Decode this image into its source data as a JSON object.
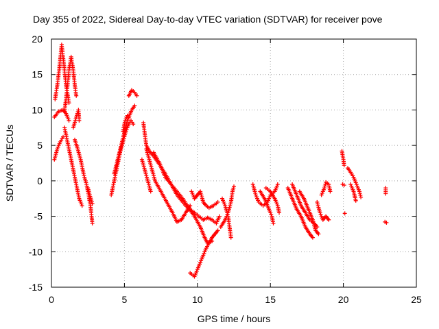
{
  "chart_data": {
    "type": "scatter",
    "title": "Day 355 of 2022, Sidereal Day-to-day VTEC variation (SDTVAR) for receiver pove",
    "xlabel": "GPS time / hours",
    "ylabel": "SDTVAR / TECUs",
    "xlim": [
      0,
      25
    ],
    "ylim": [
      -15,
      20
    ],
    "xticks": [
      0,
      5,
      10,
      15,
      20,
      25
    ],
    "yticks": [
      -15,
      -10,
      -5,
      0,
      5,
      10,
      15,
      20
    ],
    "grid": true,
    "marker": "+",
    "color": "#ff0000",
    "segments": [
      [
        [
          0.2,
          3.0
        ],
        [
          0.4,
          4.5
        ],
        [
          0.6,
          5.5
        ],
        [
          0.8,
          6.2
        ]
      ],
      [
        [
          0.25,
          11.5
        ],
        [
          0.4,
          13.5
        ],
        [
          0.55,
          16.0
        ],
        [
          0.7,
          19.2
        ],
        [
          0.85,
          16.5
        ],
        [
          1.0,
          13.5
        ],
        [
          1.2,
          11.0
        ]
      ],
      [
        [
          0.2,
          9.0
        ],
        [
          0.5,
          9.8
        ],
        [
          0.8,
          10.0
        ],
        [
          1.0,
          9.5
        ],
        [
          1.2,
          8.5
        ]
      ],
      [
        [
          0.9,
          9.8
        ],
        [
          1.05,
          12.5
        ],
        [
          1.2,
          15.5
        ],
        [
          1.35,
          17.5
        ],
        [
          1.5,
          15.5
        ],
        [
          1.6,
          13.5
        ],
        [
          1.7,
          12.0
        ]
      ],
      [
        [
          0.9,
          7.5
        ],
        [
          1.1,
          5.5
        ],
        [
          1.3,
          3.5
        ],
        [
          1.5,
          1.5
        ],
        [
          1.7,
          -0.5
        ],
        [
          1.9,
          -2.5
        ],
        [
          2.1,
          -3.5
        ]
      ],
      [
        [
          1.5,
          7.5
        ],
        [
          1.7,
          9.0
        ],
        [
          1.85,
          10.0
        ],
        [
          1.9,
          8.5
        ]
      ],
      [
        [
          1.6,
          5.8
        ],
        [
          1.8,
          4.5
        ],
        [
          2.0,
          3.0
        ],
        [
          2.2,
          1.0
        ],
        [
          2.4,
          -0.5
        ],
        [
          2.55,
          -2.0
        ],
        [
          2.7,
          -4.0
        ],
        [
          2.8,
          -6.0
        ]
      ],
      [
        [
          2.5,
          -1.0
        ],
        [
          2.65,
          -2.2
        ],
        [
          2.8,
          -3.2
        ]
      ],
      [
        [
          4.1,
          -2.0
        ],
        [
          4.3,
          0.0
        ],
        [
          4.5,
          2.0
        ],
        [
          4.7,
          4.0
        ],
        [
          4.9,
          5.5
        ],
        [
          5.1,
          7.0
        ],
        [
          5.3,
          8.0
        ],
        [
          5.45,
          8.5
        ],
        [
          5.6,
          8.0
        ]
      ],
      [
        [
          4.3,
          1.0
        ],
        [
          4.6,
          3.5
        ],
        [
          4.9,
          6.0
        ],
        [
          5.2,
          8.5
        ],
        [
          5.5,
          10.0
        ],
        [
          5.7,
          10.6
        ]
      ],
      [
        [
          5.3,
          12.0
        ],
        [
          5.5,
          12.8
        ],
        [
          5.7,
          12.5
        ],
        [
          5.85,
          12.0
        ]
      ],
      [
        [
          4.9,
          7.0
        ],
        [
          5.05,
          8.5
        ],
        [
          5.2,
          9.2
        ]
      ],
      [
        [
          6.3,
          8.2
        ],
        [
          6.4,
          6.5
        ],
        [
          6.5,
          5.0
        ],
        [
          6.7,
          4.2
        ],
        [
          7.0,
          3.5
        ],
        [
          7.4,
          2.3
        ],
        [
          7.8,
          1.0
        ],
        [
          8.2,
          -0.5
        ],
        [
          8.6,
          -2.0
        ],
        [
          9.0,
          -3.0
        ],
        [
          9.4,
          -4.0
        ],
        [
          9.7,
          -4.5
        ]
      ],
      [
        [
          6.2,
          3.0
        ],
        [
          6.4,
          1.5
        ],
        [
          6.6,
          0.0
        ],
        [
          6.8,
          -1.5
        ]
      ],
      [
        [
          6.5,
          4.5
        ],
        [
          6.7,
          3.0
        ],
        [
          6.9,
          1.5
        ],
        [
          7.1,
          0.0
        ],
        [
          7.5,
          -1.5
        ],
        [
          7.9,
          -3.0
        ],
        [
          8.3,
          -4.5
        ],
        [
          8.6,
          -5.8
        ],
        [
          8.9,
          -5.5
        ],
        [
          9.2,
          -4.5
        ],
        [
          9.5,
          -3.5
        ]
      ],
      [
        [
          7.0,
          4.0
        ],
        [
          7.4,
          2.5
        ],
        [
          7.8,
          0.5
        ],
        [
          8.2,
          -0.5
        ],
        [
          8.6,
          -1.5
        ],
        [
          9.0,
          -2.5
        ],
        [
          9.4,
          -3.8
        ],
        [
          9.8,
          -5.0
        ],
        [
          10.2,
          -6.5
        ],
        [
          10.5,
          -8.0
        ],
        [
          10.7,
          -8.8
        ],
        [
          11.0,
          -8.5
        ]
      ],
      [
        [
          9.6,
          -1.5
        ],
        [
          9.8,
          -2.5
        ],
        [
          10.0,
          -2.0
        ],
        [
          10.2,
          -1.5
        ],
        [
          10.4,
          -3.0
        ],
        [
          10.6,
          -3.5
        ],
        [
          10.8,
          -3.8
        ],
        [
          11.1,
          -3.5
        ],
        [
          11.4,
          -3.0
        ]
      ],
      [
        [
          9.5,
          -4.0
        ],
        [
          9.8,
          -4.5
        ],
        [
          10.1,
          -5.0
        ],
        [
          10.4,
          -5.5
        ],
        [
          10.7,
          -5.2
        ],
        [
          11.0,
          -5.5
        ],
        [
          11.3,
          -6.0
        ],
        [
          11.5,
          -5.0
        ]
      ],
      [
        [
          9.5,
          -13.0
        ],
        [
          9.8,
          -13.5
        ],
        [
          10.0,
          -12.5
        ],
        [
          10.2,
          -11.5
        ],
        [
          10.4,
          -10.5
        ],
        [
          10.6,
          -9.5
        ],
        [
          10.8,
          -8.8
        ],
        [
          11.0,
          -8.0
        ],
        [
          11.2,
          -7.5
        ],
        [
          11.4,
          -7.0
        ]
      ],
      [
        [
          11.6,
          -6.5
        ],
        [
          11.9,
          -5.5
        ],
        [
          12.1,
          -4.5
        ],
        [
          12.3,
          -3.0
        ],
        [
          12.4,
          -1.5
        ],
        [
          12.5,
          -0.8
        ]
      ],
      [
        [
          11.7,
          -2.5
        ],
        [
          11.9,
          -3.5
        ],
        [
          12.1,
          -5.0
        ],
        [
          12.2,
          -6.5
        ],
        [
          12.3,
          -8.0
        ]
      ],
      [
        [
          13.8,
          -0.5
        ],
        [
          14.0,
          -2.0
        ],
        [
          14.2,
          -3.0
        ],
        [
          14.5,
          -3.5
        ],
        [
          14.8,
          -3.0
        ],
        [
          15.0,
          -2.0
        ],
        [
          15.3,
          -1.5
        ],
        [
          15.5,
          -0.5
        ]
      ],
      [
        [
          14.3,
          -1.5
        ],
        [
          14.6,
          -2.5
        ],
        [
          14.9,
          -4.0
        ],
        [
          15.1,
          -5.0
        ],
        [
          15.2,
          -6.0
        ]
      ],
      [
        [
          14.7,
          -1.0
        ],
        [
          15.0,
          -1.5
        ],
        [
          15.3,
          -2.5
        ],
        [
          15.5,
          -3.5
        ],
        [
          15.6,
          -4.5
        ]
      ],
      [
        [
          16.2,
          -1.0
        ],
        [
          16.5,
          -2.5
        ],
        [
          16.8,
          -4.0
        ],
        [
          17.1,
          -5.0
        ],
        [
          17.4,
          -6.5
        ],
        [
          17.7,
          -7.5
        ],
        [
          17.9,
          -8.0
        ]
      ],
      [
        [
          16.5,
          -0.5
        ],
        [
          16.8,
          -2.0
        ],
        [
          17.1,
          -3.5
        ],
        [
          17.4,
          -4.5
        ],
        [
          17.7,
          -5.5
        ],
        [
          18.0,
          -6.0
        ],
        [
          18.2,
          -6.5
        ]
      ],
      [
        [
          17.0,
          -1.5
        ],
        [
          17.3,
          -2.5
        ],
        [
          17.6,
          -4.0
        ],
        [
          17.9,
          -5.5
        ],
        [
          18.1,
          -7.0
        ],
        [
          18.3,
          -7.5
        ]
      ],
      [
        [
          18.2,
          -3.0
        ],
        [
          18.4,
          -4.5
        ],
        [
          18.6,
          -5.5
        ],
        [
          18.8,
          -5.0
        ],
        [
          19.0,
          -5.5
        ]
      ],
      [
        [
          18.5,
          -2.0
        ],
        [
          18.7,
          -1.0
        ],
        [
          18.8,
          -0.2
        ],
        [
          19.0,
          -0.5
        ],
        [
          19.1,
          -1.5
        ]
      ],
      [
        [
          19.9,
          4.2
        ],
        [
          20.0,
          3.0
        ],
        [
          20.05,
          2.2
        ]
      ],
      [
        [
          19.95,
          -0.5
        ],
        [
          20.05,
          -0.6
        ]
      ],
      [
        [
          20.1,
          -4.6
        ]
      ],
      [
        [
          20.3,
          1.8
        ],
        [
          20.5,
          1.2
        ],
        [
          20.7,
          0.5
        ],
        [
          20.9,
          -0.5
        ],
        [
          21.1,
          -1.5
        ],
        [
          21.2,
          -2.3
        ]
      ],
      [
        [
          20.5,
          -0.5
        ],
        [
          20.7,
          -1.5
        ],
        [
          20.85,
          -2.8
        ]
      ],
      [
        [
          22.9,
          -1.0
        ],
        [
          22.9,
          -1.8
        ]
      ],
      [
        [
          22.85,
          -5.8
        ],
        [
          22.95,
          -5.9
        ]
      ]
    ]
  }
}
